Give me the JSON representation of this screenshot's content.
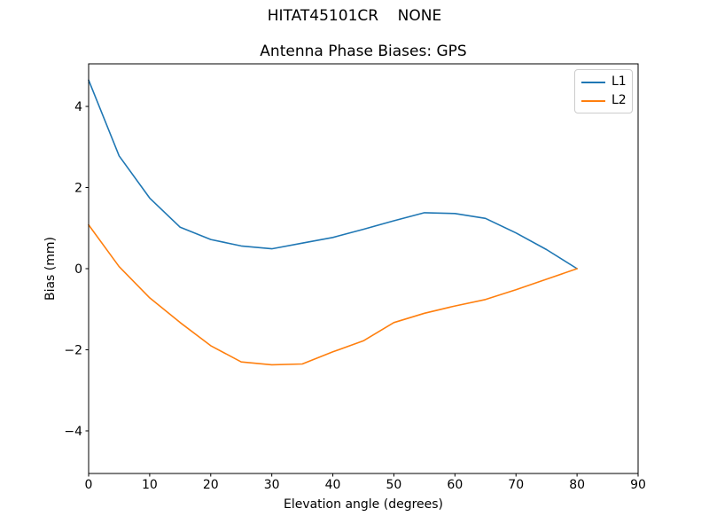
{
  "figure": {
    "suptitle": "HITAT45101CR    NONE",
    "background_color": "#ffffff",
    "axis_color": "#000000"
  },
  "chart_data": {
    "type": "line",
    "title": "Antenna Phase Biases: GPS",
    "xlabel": "Elevation angle (degrees)",
    "ylabel": "Bias (mm)",
    "xlim": [
      0,
      90
    ],
    "ylim": [
      -5.05,
      5.05
    ],
    "xticks": [
      0,
      10,
      20,
      30,
      40,
      50,
      60,
      70,
      80,
      90
    ],
    "xtick_labels": [
      "0",
      "10",
      "20",
      "30",
      "40",
      "50",
      "60",
      "70",
      "80",
      "90"
    ],
    "yticks": [
      4,
      2,
      0,
      -2,
      -4
    ],
    "ytick_labels": [
      "4",
      "2",
      "0",
      "−2",
      "−4"
    ],
    "grid": false,
    "legend_position": "upper-right",
    "x": [
      0,
      5,
      10,
      15,
      20,
      25,
      30,
      35,
      40,
      45,
      50,
      55,
      60,
      65,
      70,
      75,
      80
    ],
    "series": [
      {
        "name": "L1",
        "color": "#1f77b4",
        "values": [
          4.65,
          2.78,
          1.74,
          1.02,
          0.72,
          0.56,
          0.49,
          0.63,
          0.77,
          0.97,
          1.18,
          1.38,
          1.36,
          1.24,
          0.88,
          0.47,
          0.0
        ]
      },
      {
        "name": "L2",
        "color": "#ff7f0e",
        "values": [
          1.08,
          0.05,
          -0.72,
          -1.33,
          -1.9,
          -2.3,
          -2.37,
          -2.35,
          -2.05,
          -1.78,
          -1.33,
          -1.1,
          -0.92,
          -0.76,
          -0.52,
          -0.26,
          0.0
        ]
      }
    ]
  }
}
